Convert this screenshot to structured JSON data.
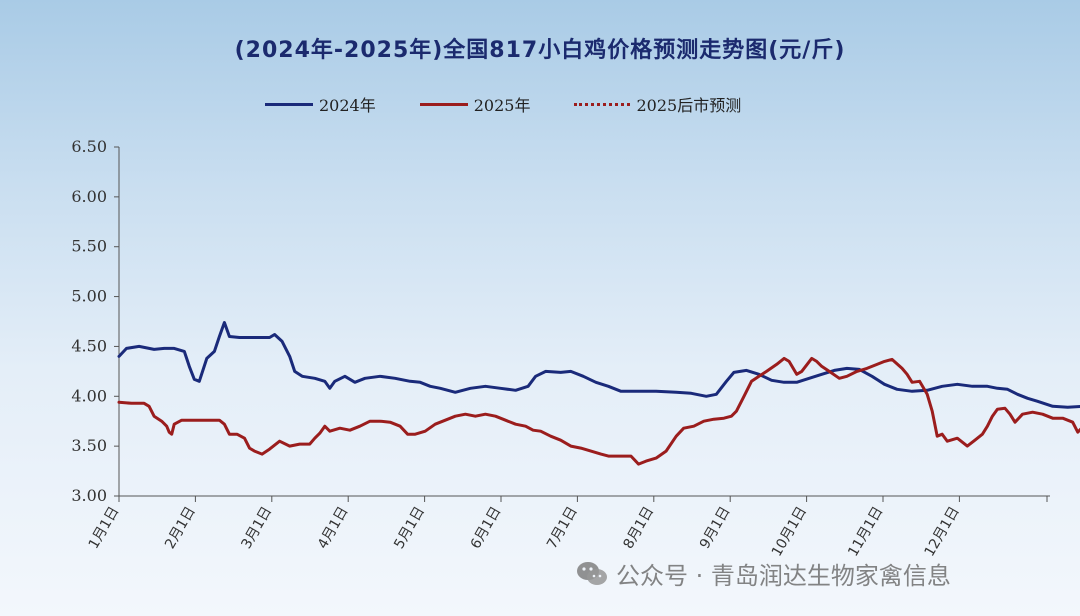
{
  "chart_data": {
    "type": "line",
    "title": "(2024年-2025年)全国817小白鸡价格预测走势图(元/斤)",
    "ylim": [
      3.0,
      6.5
    ],
    "yticks": [
      "3.00",
      "3.50",
      "4.00",
      "4.50",
      "5.00",
      "5.50",
      "6.00",
      "6.50"
    ],
    "xticks": [
      "1月1日",
      "2月1日",
      "3月1日",
      "4月1日",
      "5月1日",
      "6月1日",
      "7月1日",
      "8月1日",
      "9月1日",
      "10月1日",
      "11月1日",
      "12月1日"
    ],
    "x_range_days": [
      0,
      365
    ],
    "legend_position": "top",
    "series": [
      {
        "name": "2024年",
        "color": "#1a2a7a",
        "style": "solid",
        "points": [
          [
            0,
            4.4
          ],
          [
            3,
            4.48
          ],
          [
            8,
            4.5
          ],
          [
            14,
            4.47
          ],
          [
            18,
            4.48
          ],
          [
            22,
            4.48
          ],
          [
            26,
            4.45
          ],
          [
            28,
            4.3
          ],
          [
            30,
            4.17
          ],
          [
            32,
            4.15
          ],
          [
            35,
            4.38
          ],
          [
            38,
            4.45
          ],
          [
            40,
            4.6
          ],
          [
            42,
            4.74
          ],
          [
            44,
            4.6
          ],
          [
            48,
            4.59
          ],
          [
            55,
            4.59
          ],
          [
            60,
            4.59
          ],
          [
            62,
            4.62
          ],
          [
            65,
            4.55
          ],
          [
            68,
            4.4
          ],
          [
            70,
            4.25
          ],
          [
            73,
            4.2
          ],
          [
            78,
            4.18
          ],
          [
            82,
            4.15
          ],
          [
            84,
            4.08
          ],
          [
            86,
            4.15
          ],
          [
            90,
            4.2
          ],
          [
            94,
            4.14
          ],
          [
            98,
            4.18
          ],
          [
            104,
            4.2
          ],
          [
            110,
            4.18
          ],
          [
            116,
            4.15
          ],
          [
            120,
            4.14
          ],
          [
            124,
            4.1
          ],
          [
            128,
            4.08
          ],
          [
            134,
            4.04
          ],
          [
            140,
            4.08
          ],
          [
            146,
            4.1
          ],
          [
            152,
            4.08
          ],
          [
            158,
            4.06
          ],
          [
            163,
            4.1
          ],
          [
            166,
            4.2
          ],
          [
            170,
            4.25
          ],
          [
            176,
            4.24
          ],
          [
            180,
            4.25
          ],
          [
            185,
            4.2
          ],
          [
            190,
            4.14
          ],
          [
            195,
            4.1
          ],
          [
            200,
            4.05
          ],
          [
            207,
            4.05
          ],
          [
            214,
            4.05
          ],
          [
            222,
            4.04
          ],
          [
            228,
            4.03
          ],
          [
            234,
            4.0
          ],
          [
            238,
            4.02
          ],
          [
            242,
            4.15
          ],
          [
            245,
            4.24
          ],
          [
            250,
            4.26
          ],
          [
            255,
            4.22
          ],
          [
            260,
            4.16
          ],
          [
            265,
            4.14
          ],
          [
            270,
            4.14
          ],
          [
            275,
            4.18
          ],
          [
            280,
            4.22
          ],
          [
            285,
            4.26
          ],
          [
            290,
            4.28
          ],
          [
            295,
            4.27
          ],
          [
            300,
            4.2
          ],
          [
            305,
            4.12
          ],
          [
            310,
            4.07
          ],
          [
            316,
            4.05
          ],
          [
            322,
            4.06
          ],
          [
            328,
            4.1
          ],
          [
            334,
            4.12
          ],
          [
            340,
            4.1
          ],
          [
            346,
            4.1
          ],
          [
            350,
            4.08
          ],
          [
            354,
            4.07
          ],
          [
            358,
            4.02
          ],
          [
            362,
            3.98
          ],
          [
            366,
            3.95
          ],
          [
            372,
            3.9
          ],
          [
            378,
            3.89
          ],
          [
            384,
            3.9
          ],
          [
            388,
            3.95
          ],
          [
            392,
            3.94
          ],
          [
            396,
            3.93
          ],
          [
            400,
            3.96
          ],
          [
            404,
            3.98
          ],
          [
            407,
            3.98
          ]
        ]
      },
      {
        "name": "2025年",
        "color": "#9b1d1d",
        "style": "solid",
        "points": [
          [
            0,
            3.94
          ],
          [
            5,
            3.93
          ],
          [
            10,
            3.93
          ],
          [
            12,
            3.9
          ],
          [
            14,
            3.8
          ],
          [
            17,
            3.75
          ],
          [
            19,
            3.7
          ],
          [
            20,
            3.64
          ],
          [
            21,
            3.62
          ],
          [
            22,
            3.72
          ],
          [
            25,
            3.76
          ],
          [
            28,
            3.76
          ],
          [
            33,
            3.76
          ],
          [
            38,
            3.76
          ],
          [
            40,
            3.76
          ],
          [
            42,
            3.72
          ],
          [
            44,
            3.62
          ],
          [
            47,
            3.62
          ],
          [
            50,
            3.58
          ],
          [
            52,
            3.48
          ],
          [
            54,
            3.45
          ],
          [
            57,
            3.42
          ],
          [
            60,
            3.47
          ],
          [
            64,
            3.55
          ],
          [
            68,
            3.5
          ],
          [
            72,
            3.52
          ],
          [
            76,
            3.52
          ],
          [
            78,
            3.58
          ],
          [
            80,
            3.63
          ],
          [
            82,
            3.7
          ],
          [
            84,
            3.65
          ],
          [
            88,
            3.68
          ],
          [
            92,
            3.66
          ],
          [
            96,
            3.7
          ],
          [
            100,
            3.75
          ],
          [
            104,
            3.75
          ],
          [
            108,
            3.74
          ],
          [
            112,
            3.7
          ],
          [
            115,
            3.62
          ],
          [
            118,
            3.62
          ],
          [
            122,
            3.65
          ],
          [
            126,
            3.72
          ],
          [
            130,
            3.76
          ],
          [
            134,
            3.8
          ],
          [
            138,
            3.82
          ],
          [
            142,
            3.8
          ],
          [
            146,
            3.82
          ],
          [
            150,
            3.8
          ],
          [
            154,
            3.76
          ],
          [
            158,
            3.72
          ],
          [
            162,
            3.7
          ],
          [
            165,
            3.66
          ],
          [
            168,
            3.65
          ],
          [
            172,
            3.6
          ],
          [
            176,
            3.56
          ],
          [
            180,
            3.5
          ],
          [
            184,
            3.48
          ],
          [
            188,
            3.45
          ],
          [
            192,
            3.42
          ],
          [
            195,
            3.4
          ],
          [
            200,
            3.4
          ],
          [
            204,
            3.4
          ],
          [
            207,
            3.32
          ],
          [
            210,
            3.35
          ],
          [
            214,
            3.38
          ],
          [
            218,
            3.45
          ],
          [
            222,
            3.6
          ],
          [
            225,
            3.68
          ],
          [
            229,
            3.7
          ],
          [
            233,
            3.75
          ],
          [
            237,
            3.77
          ],
          [
            241,
            3.78
          ],
          [
            244,
            3.8
          ],
          [
            246,
            3.85
          ],
          [
            249,
            4.0
          ],
          [
            252,
            4.15
          ],
          [
            255,
            4.2
          ],
          [
            258,
            4.25
          ],
          [
            262,
            4.32
          ],
          [
            265,
            4.38
          ],
          [
            267,
            4.35
          ],
          [
            270,
            4.22
          ],
          [
            272,
            4.25
          ],
          [
            276,
            4.38
          ],
          [
            278,
            4.35
          ],
          [
            280,
            4.3
          ],
          [
            283,
            4.25
          ],
          [
            287,
            4.18
          ],
          [
            290,
            4.2
          ],
          [
            294,
            4.25
          ],
          [
            298,
            4.28
          ],
          [
            302,
            4.32
          ],
          [
            305,
            4.35
          ],
          [
            308,
            4.37
          ],
          [
            312,
            4.28
          ],
          [
            314,
            4.22
          ],
          [
            316,
            4.14
          ],
          [
            319,
            4.15
          ],
          [
            322,
            4.02
          ],
          [
            324,
            3.85
          ],
          [
            326,
            3.6
          ],
          [
            328,
            3.62
          ],
          [
            330,
            3.55
          ],
          [
            334,
            3.58
          ],
          [
            338,
            3.5
          ],
          [
            341,
            3.56
          ],
          [
            344,
            3.62
          ],
          [
            346,
            3.7
          ],
          [
            348,
            3.8
          ],
          [
            350,
            3.87
          ],
          [
            353,
            3.88
          ],
          [
            355,
            3.82
          ],
          [
            357,
            3.74
          ],
          [
            360,
            3.82
          ],
          [
            364,
            3.84
          ],
          [
            368,
            3.82
          ],
          [
            372,
            3.78
          ],
          [
            376,
            3.78
          ],
          [
            380,
            3.74
          ],
          [
            382,
            3.64
          ],
          [
            385,
            3.72
          ],
          [
            387,
            3.78
          ]
        ]
      },
      {
        "name": "2025后市预测",
        "color": "#9b1d1d",
        "style": "dotted",
        "points": [
          [
            387,
            3.78
          ],
          [
            390,
            3.74
          ],
          [
            393,
            3.72
          ],
          [
            397,
            3.7
          ],
          [
            401,
            3.7
          ],
          [
            405,
            3.69
          ],
          [
            410,
            3.7
          ],
          [
            414,
            3.69
          ],
          [
            418,
            3.69
          ],
          [
            422,
            3.7
          ],
          [
            425,
            3.76
          ],
          [
            429,
            3.74
          ],
          [
            433,
            3.73
          ],
          [
            437,
            3.72
          ],
          [
            441,
            3.75
          ],
          [
            444,
            3.77
          ],
          [
            447,
            3.77
          ]
        ]
      }
    ]
  },
  "watermark": {
    "text": "公众号 · 青岛润达生物家禽信息",
    "icon": "wechat-icon"
  }
}
